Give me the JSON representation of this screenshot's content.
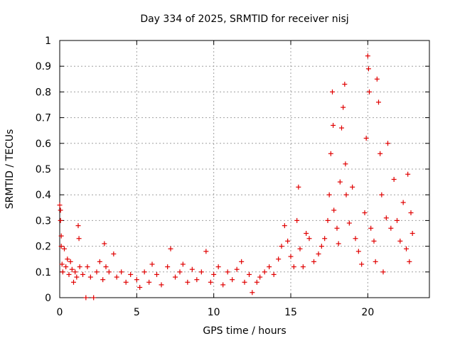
{
  "chart_data": {
    "type": "scatter",
    "title": "Day 334 of 2025, SRMTID for receiver nisj",
    "xlabel": "GPS time / hours",
    "ylabel": "SRMTID / TECUs",
    "xlim": [
      0,
      24
    ],
    "ylim": [
      0,
      1
    ],
    "xticks": [
      "0",
      "5",
      "10",
      "15",
      "20"
    ],
    "yticks": [
      "0",
      "0.1",
      "0.2",
      "0.3",
      "0.4",
      "0.5",
      "0.6",
      "0.7",
      "0.8",
      "0.9",
      "1"
    ],
    "xtick_values": [
      0,
      5,
      10,
      15,
      20
    ],
    "ytick_values": [
      0,
      0.1,
      0.2,
      0.3,
      0.4,
      0.5,
      0.6,
      0.7,
      0.8,
      0.9,
      1.0
    ],
    "grid": true,
    "marker": "+",
    "color": "#e00000",
    "series": [
      {
        "name": "SRMTID",
        "points": [
          [
            0.0,
            0.36
          ],
          [
            0.05,
            0.34
          ],
          [
            0.05,
            0.3
          ],
          [
            0.1,
            0.24
          ],
          [
            0.1,
            0.2
          ],
          [
            0.15,
            0.13
          ],
          [
            0.2,
            0.1
          ],
          [
            0.3,
            0.19
          ],
          [
            0.4,
            0.12
          ],
          [
            0.5,
            0.15
          ],
          [
            0.6,
            0.09
          ],
          [
            0.7,
            0.14
          ],
          [
            0.8,
            0.11
          ],
          [
            0.9,
            0.06
          ],
          [
            1.0,
            0.1
          ],
          [
            1.1,
            0.08
          ],
          [
            1.2,
            0.28
          ],
          [
            1.25,
            0.23
          ],
          [
            1.3,
            0.12
          ],
          [
            1.5,
            0.09
          ],
          [
            1.7,
            0.0
          ],
          [
            1.8,
            0.12
          ],
          [
            2.0,
            0.08
          ],
          [
            2.2,
            0.0
          ],
          [
            2.4,
            0.1
          ],
          [
            2.6,
            0.14
          ],
          [
            2.8,
            0.07
          ],
          [
            2.9,
            0.21
          ],
          [
            3.0,
            0.12
          ],
          [
            3.2,
            0.1
          ],
          [
            3.5,
            0.17
          ],
          [
            3.7,
            0.08
          ],
          [
            4.0,
            0.1
          ],
          [
            4.3,
            0.06
          ],
          [
            4.6,
            0.09
          ],
          [
            5.0,
            0.07
          ],
          [
            5.2,
            0.04
          ],
          [
            5.5,
            0.1
          ],
          [
            5.8,
            0.06
          ],
          [
            6.0,
            0.13
          ],
          [
            6.3,
            0.09
          ],
          [
            6.6,
            0.05
          ],
          [
            7.0,
            0.12
          ],
          [
            7.2,
            0.19
          ],
          [
            7.5,
            0.08
          ],
          [
            7.8,
            0.1
          ],
          [
            8.0,
            0.13
          ],
          [
            8.3,
            0.06
          ],
          [
            8.6,
            0.11
          ],
          [
            8.9,
            0.07
          ],
          [
            9.2,
            0.1
          ],
          [
            9.5,
            0.18
          ],
          [
            9.8,
            0.06
          ],
          [
            10.0,
            0.09
          ],
          [
            10.3,
            0.12
          ],
          [
            10.6,
            0.05
          ],
          [
            10.9,
            0.1
          ],
          [
            11.2,
            0.07
          ],
          [
            11.5,
            0.11
          ],
          [
            11.8,
            0.14
          ],
          [
            12.0,
            0.06
          ],
          [
            12.3,
            0.09
          ],
          [
            12.5,
            0.02
          ],
          [
            12.8,
            0.06
          ],
          [
            13.0,
            0.08
          ],
          [
            13.3,
            0.1
          ],
          [
            13.6,
            0.12
          ],
          [
            13.9,
            0.09
          ],
          [
            14.2,
            0.15
          ],
          [
            14.4,
            0.2
          ],
          [
            14.6,
            0.28
          ],
          [
            14.8,
            0.22
          ],
          [
            15.0,
            0.16
          ],
          [
            15.2,
            0.12
          ],
          [
            15.4,
            0.3
          ],
          [
            15.5,
            0.43
          ],
          [
            15.6,
            0.19
          ],
          [
            15.8,
            0.12
          ],
          [
            16.0,
            0.25
          ],
          [
            16.2,
            0.23
          ],
          [
            16.5,
            0.14
          ],
          [
            16.8,
            0.17
          ],
          [
            17.0,
            0.2
          ],
          [
            17.2,
            0.23
          ],
          [
            17.4,
            0.3
          ],
          [
            17.5,
            0.4
          ],
          [
            17.6,
            0.56
          ],
          [
            17.7,
            0.8
          ],
          [
            17.75,
            0.67
          ],
          [
            17.8,
            0.34
          ],
          [
            18.0,
            0.27
          ],
          [
            18.1,
            0.21
          ],
          [
            18.2,
            0.45
          ],
          [
            18.3,
            0.66
          ],
          [
            18.4,
            0.74
          ],
          [
            18.5,
            0.83
          ],
          [
            18.55,
            0.52
          ],
          [
            18.6,
            0.4
          ],
          [
            18.8,
            0.29
          ],
          [
            19.0,
            0.43
          ],
          [
            19.2,
            0.23
          ],
          [
            19.4,
            0.18
          ],
          [
            19.6,
            0.13
          ],
          [
            19.8,
            0.33
          ],
          [
            19.9,
            0.62
          ],
          [
            20.0,
            0.94
          ],
          [
            20.05,
            0.89
          ],
          [
            20.1,
            0.8
          ],
          [
            20.2,
            0.27
          ],
          [
            20.4,
            0.22
          ],
          [
            20.5,
            0.14
          ],
          [
            20.6,
            0.85
          ],
          [
            20.7,
            0.76
          ],
          [
            20.8,
            0.56
          ],
          [
            20.9,
            0.4
          ],
          [
            21.0,
            0.1
          ],
          [
            21.2,
            0.31
          ],
          [
            21.3,
            0.6
          ],
          [
            21.5,
            0.27
          ],
          [
            21.7,
            0.46
          ],
          [
            21.9,
            0.3
          ],
          [
            22.1,
            0.22
          ],
          [
            22.3,
            0.37
          ],
          [
            22.5,
            0.19
          ],
          [
            22.6,
            0.48
          ],
          [
            22.7,
            0.14
          ],
          [
            22.8,
            0.33
          ],
          [
            22.9,
            0.25
          ]
        ]
      }
    ]
  }
}
